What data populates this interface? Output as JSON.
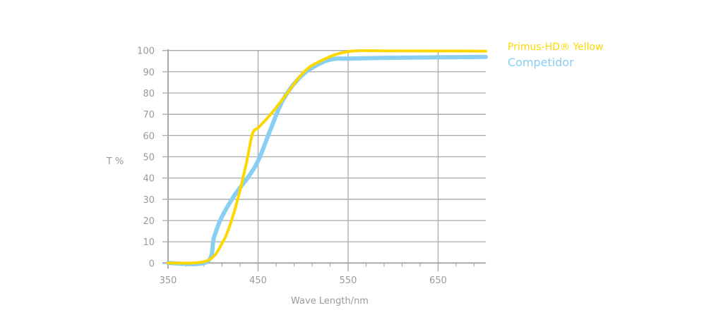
{
  "chart_data": {
    "type": "line",
    "title": "",
    "xlabel": "Wave Length/nm",
    "ylabel": "T %",
    "xlim": [
      350,
      703
    ],
    "ylim": [
      0,
      100
    ],
    "x_ticks": [
      350,
      450,
      550,
      650
    ],
    "x_minor_step": 20,
    "y_ticks": [
      0,
      10,
      20,
      30,
      40,
      50,
      60,
      70,
      80,
      90,
      100
    ],
    "grid": true,
    "legend_position": "top-right",
    "series": [
      {
        "name": "Primus-HD® Yellow",
        "color": "#FCD800",
        "x": [
          350,
          393,
          411,
          422,
          431,
          438,
          444,
          451,
          464,
          479,
          500,
          519,
          550,
          600,
          703
        ],
        "y": [
          0,
          1,
          10,
          22,
          36,
          49,
          61,
          64,
          70,
          78,
          89.5,
          95,
          99.5,
          99.8,
          99.7
        ]
      },
      {
        "name": "Competidor",
        "color": "#88CFF1",
        "x": [
          350,
          393,
          401,
          409,
          424,
          440,
          451,
          464,
          478,
          498,
          519,
          534,
          550,
          600,
          703
        ],
        "y": [
          0,
          0.5,
          12,
          21,
          32,
          41,
          49,
          63,
          77,
          88,
          94,
          96,
          96.2,
          96.6,
          97
        ]
      }
    ]
  }
}
